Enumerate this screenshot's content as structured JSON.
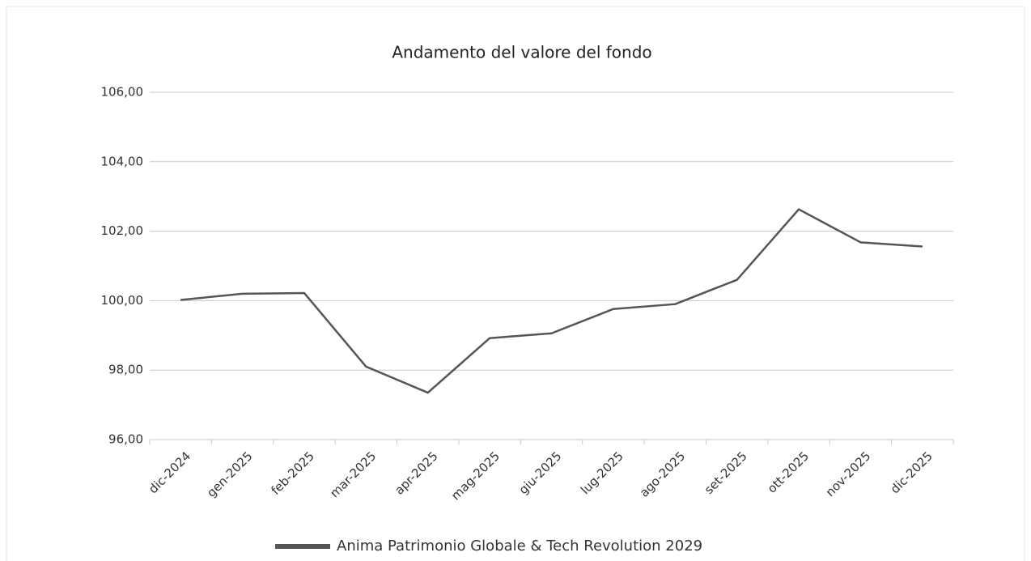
{
  "chart_data": {
    "type": "line",
    "title": "Andamento del valore del fondo",
    "categories": [
      "dic-2024",
      "gen-2025",
      "feb-2025",
      "mar-2025",
      "apr-2025",
      "mag-2025",
      "giu-2025",
      "lug-2025",
      "ago-2025",
      "set-2025",
      "ott-2025",
      "nov-2025",
      "dic-2025"
    ],
    "series": [
      {
        "name": "Anima Patrimonio Globale & Tech Revolution 2029",
        "color": "#555555",
        "values": [
          100.02,
          100.2,
          100.22,
          98.1,
          97.35,
          98.92,
          99.06,
          99.76,
          99.9,
          100.6,
          102.63,
          101.68,
          101.56
        ]
      }
    ],
    "ylim": [
      96,
      106
    ],
    "yticks": [
      {
        "value": 96,
        "label": "96,00"
      },
      {
        "value": 98,
        "label": "98,00"
      },
      {
        "value": 100,
        "label": "100,00"
      },
      {
        "value": 102,
        "label": "102,00"
      },
      {
        "value": 104,
        "label": "104,00"
      },
      {
        "value": 106,
        "label": "106,00"
      }
    ],
    "grid": true,
    "legend": "bottom"
  }
}
